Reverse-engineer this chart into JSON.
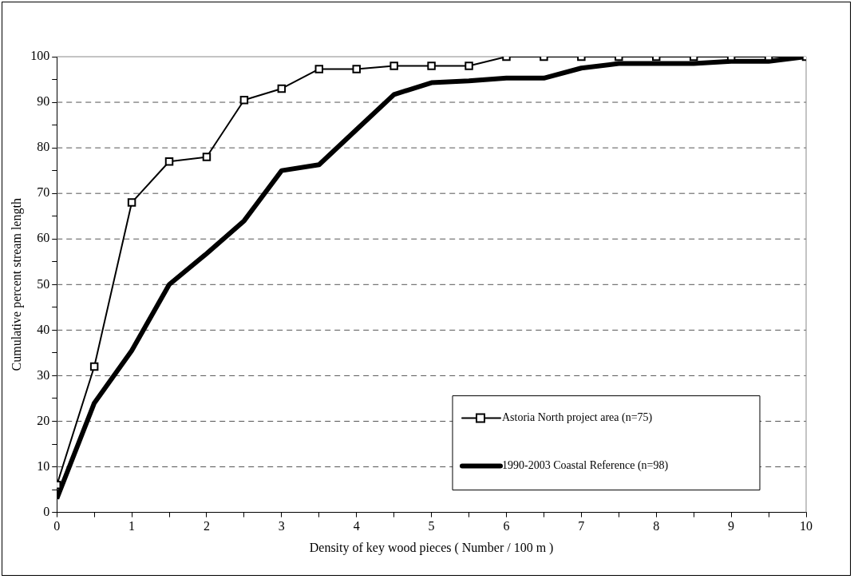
{
  "chart_data": {
    "type": "line",
    "xlabel": "Density of key wood pieces ( Number / 100 m )",
    "ylabel": "Cumulative percent stream length",
    "x": [
      0,
      0.5,
      1,
      1.5,
      2,
      2.5,
      3,
      3.5,
      4,
      4.5,
      5,
      5.5,
      6,
      6.5,
      7,
      7.5,
      8,
      8.5,
      9,
      9.5,
      10
    ],
    "xlim": [
      0,
      10
    ],
    "xticks": [
      0,
      {
        "value": 0.5,
        "label": null
      },
      1,
      {
        "value": 1.5,
        "label": null
      },
      2,
      {
        "value": 2.5,
        "label": null
      },
      3,
      {
        "value": 3.5,
        "label": null
      },
      4,
      {
        "value": 4.5,
        "label": null
      },
      5,
      {
        "value": 5.5,
        "label": null
      },
      6,
      {
        "value": 6.5,
        "label": null
      },
      7,
      {
        "value": 7.5,
        "label": null
      },
      8,
      {
        "value": 8.5,
        "label": null
      },
      9,
      {
        "value": 9.5,
        "label": null
      },
      10
    ],
    "ylim": [
      0,
      100
    ],
    "yticks": [
      0,
      {
        "value": 5,
        "label": null
      },
      10,
      {
        "value": 15,
        "label": null
      },
      20,
      {
        "value": 25,
        "label": null
      },
      30,
      {
        "value": 35,
        "label": null
      },
      40,
      {
        "value": 45,
        "label": null
      },
      50,
      {
        "value": 55,
        "label": null
      },
      60,
      {
        "value": 65,
        "label": null
      },
      70,
      {
        "value": 75,
        "label": null
      },
      80,
      {
        "value": 85,
        "label": null
      },
      90,
      {
        "value": 95,
        "label": null
      },
      100
    ],
    "grid": "y",
    "legend": "bottom right",
    "series": [
      {
        "name": "Astoria North project area (n=75)",
        "color": "#000000",
        "marker": "square",
        "values": [
          6,
          32,
          68,
          77,
          78,
          90.5,
          93,
          97.3,
          97.3,
          98,
          98,
          98,
          100,
          100,
          100,
          100,
          100,
          100,
          100,
          100,
          100
        ]
      },
      {
        "name": "1990-2003 Coastal Reference (n=98)",
        "color": "#000000",
        "marker": "none",
        "values": [
          3,
          24,
          35.5,
          50,
          56.8,
          64,
          75,
          76.3,
          84,
          91.7,
          94.3,
          94.7,
          95.3,
          95.3,
          97.5,
          98.5,
          98.5,
          98.5,
          99,
          99,
          100
        ]
      }
    ]
  }
}
